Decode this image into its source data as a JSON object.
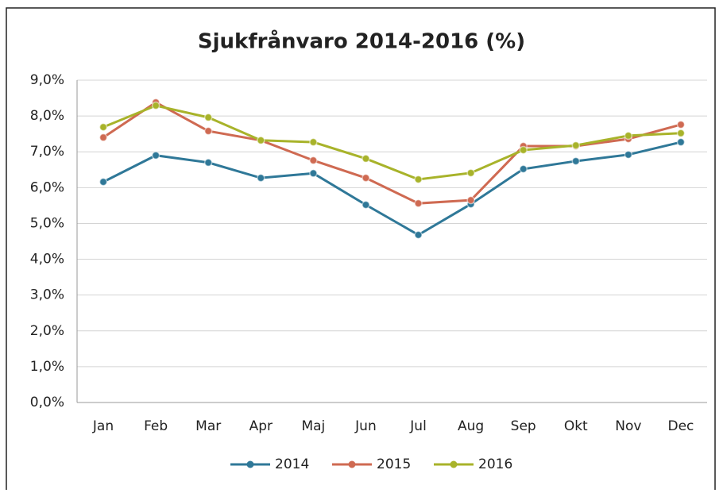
{
  "chart_data": {
    "type": "line",
    "title": "Sjukfrånvaro 2014-2016 (%)",
    "categories": [
      "Jan",
      "Feb",
      "Mar",
      "Apr",
      "Maj",
      "Jun",
      "Jul",
      "Aug",
      "Sep",
      "Okt",
      "Nov",
      "Dec"
    ],
    "series": [
      {
        "name": "2014",
        "color": "#2f7898",
        "values": [
          6.16,
          6.9,
          6.7,
          6.27,
          6.4,
          5.52,
          4.68,
          5.54,
          6.52,
          6.74,
          6.92,
          7.27
        ]
      },
      {
        "name": "2015",
        "color": "#cf6a52",
        "values": [
          7.4,
          8.38,
          7.58,
          7.32,
          6.76,
          6.27,
          5.56,
          5.65,
          7.16,
          7.16,
          7.36,
          7.76
        ]
      },
      {
        "name": "2016",
        "color": "#a8b32a",
        "values": [
          7.69,
          8.29,
          7.96,
          7.32,
          7.27,
          6.81,
          6.23,
          6.41,
          7.05,
          7.18,
          7.45,
          7.52
        ]
      }
    ],
    "ylim": [
      0,
      9
    ],
    "yticks": [
      {
        "value": 0,
        "label": "0,0%"
      },
      {
        "value": 1,
        "label": "1,0%"
      },
      {
        "value": 2,
        "label": "2,0%"
      },
      {
        "value": 3,
        "label": "3,0%"
      },
      {
        "value": 4,
        "label": "4,0%"
      },
      {
        "value": 5,
        "label": "5,0%"
      },
      {
        "value": 6,
        "label": "6,0%"
      },
      {
        "value": 7,
        "label": "7,0%"
      },
      {
        "value": 8,
        "label": "8,0%"
      },
      {
        "value": 9,
        "label": "9,0%"
      }
    ],
    "grid": true,
    "legend": "bottom"
  }
}
